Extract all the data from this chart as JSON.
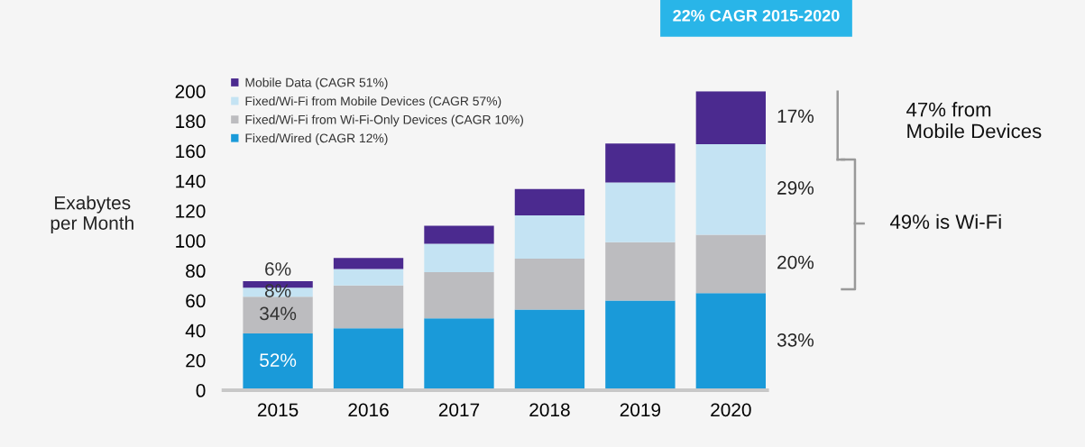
{
  "chart_data": {
    "type": "bar",
    "title": "22% CAGR 2015-2020",
    "ylabel": "Exabytes\nper Month",
    "categories": [
      "2015",
      "2016",
      "2017",
      "2018",
      "2019",
      "2020"
    ],
    "stacked": true,
    "series": [
      {
        "name": "Fixed/Wired (CAGR 12%)",
        "color": "#1a9ad9",
        "values": [
          38,
          41.5,
          48,
          54,
          60,
          65
        ]
      },
      {
        "name": "Fixed/Wi-Fi from Wi-Fi-Only Devices (CAGR 10%)",
        "color": "#bcbcbf",
        "values": [
          24.5,
          28.5,
          31,
          34,
          39,
          39
        ]
      },
      {
        "name": "Fixed/Wi-Fi from Mobile Devices (CAGR 57%)",
        "color": "#c4e3f3",
        "values": [
          6,
          11,
          19,
          29,
          40,
          60.5
        ]
      },
      {
        "name": "Mobile Data (CAGR 51%)",
        "color": "#4b2a8f",
        "values": [
          4.5,
          7.5,
          12,
          17.5,
          26,
          35.5
        ]
      }
    ],
    "ylim": [
      0,
      200
    ],
    "yticks": [
      0,
      20,
      40,
      60,
      80,
      100,
      120,
      140,
      160,
      180,
      200
    ],
    "legend": "top left",
    "annotations": [
      "52%",
      "34%",
      "8%",
      "6%",
      "33%",
      "20%",
      "29%",
      "17%",
      "47% from\nMobile Devices",
      "49% is Wi-Fi"
    ]
  }
}
